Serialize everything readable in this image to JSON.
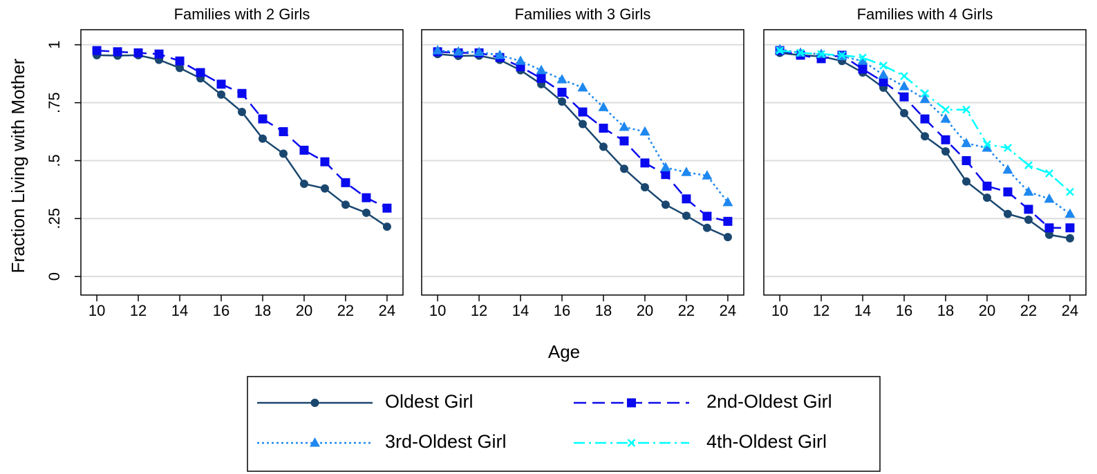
{
  "ylabel": "Fraction Living with Mother",
  "xlabel": "Age",
  "chart_data": [
    {
      "type": "line",
      "title": "Families with 2 Girls",
      "x": [
        10,
        11,
        12,
        13,
        14,
        15,
        16,
        17,
        18,
        19,
        20,
        21,
        22,
        23,
        24
      ],
      "xlim": [
        9.23,
        24.77
      ],
      "xticks": [
        10,
        12,
        14,
        16,
        18,
        20,
        22,
        24
      ],
      "ylim": [
        -0.08,
        1.065
      ],
      "yticks": [
        0,
        {
          "value": 0.25,
          "label": ".25"
        },
        {
          "value": 0.5,
          "label": ".5"
        },
        {
          "value": 0.75,
          "label": ".75"
        },
        1
      ],
      "grid": true,
      "series": [
        {
          "name": "Oldest Girl",
          "color": "#1a476f",
          "marker": "circle",
          "line_style": "solid",
          "values": [
            0.955,
            0.953,
            0.955,
            0.935,
            0.9,
            0.855,
            0.785,
            0.71,
            0.595,
            0.53,
            0.4,
            0.38,
            0.31,
            0.275,
            0.215
          ]
        },
        {
          "name": "2nd-Oldest Girl",
          "color": "#0a0aee",
          "marker": "square",
          "line_style": "dashed",
          "values": [
            0.975,
            0.97,
            0.965,
            0.96,
            0.93,
            0.88,
            0.83,
            0.79,
            0.68,
            0.625,
            0.545,
            0.495,
            0.405,
            0.34,
            0.295
          ]
        }
      ]
    },
    {
      "type": "line",
      "title": "Families with 3 Girls",
      "x": [
        10,
        11,
        12,
        13,
        14,
        15,
        16,
        17,
        18,
        19,
        20,
        21,
        22,
        23,
        24
      ],
      "xlim": [
        9.23,
        24.77
      ],
      "xticks": [
        10,
        12,
        14,
        16,
        18,
        20,
        22,
        24
      ],
      "ylim": [
        -0.08,
        1.065
      ],
      "grid": true,
      "series": [
        {
          "name": "Oldest Girl",
          "color": "#1a476f",
          "marker": "circle",
          "line_style": "solid",
          "values": [
            0.96,
            0.952,
            0.953,
            0.935,
            0.89,
            0.83,
            0.755,
            0.658,
            0.56,
            0.465,
            0.385,
            0.31,
            0.262,
            0.21,
            0.17
          ]
        },
        {
          "name": "2nd-Oldest Girl",
          "color": "#0a0aee",
          "marker": "square",
          "line_style": "dashed",
          "values": [
            0.97,
            0.965,
            0.965,
            0.945,
            0.905,
            0.855,
            0.795,
            0.71,
            0.64,
            0.585,
            0.49,
            0.44,
            0.335,
            0.26,
            0.238
          ]
        },
        {
          "name": "3rd-Oldest Girl",
          "color": "#1e88f0",
          "marker": "triangle",
          "line_style": "dotted",
          "values": [
            0.975,
            0.97,
            0.968,
            0.955,
            0.93,
            0.89,
            0.85,
            0.815,
            0.73,
            0.645,
            0.625,
            0.47,
            0.45,
            0.435,
            0.32
          ]
        }
      ]
    },
    {
      "type": "line",
      "title": "Families with 4 Girls",
      "x": [
        10,
        11,
        12,
        13,
        14,
        15,
        16,
        17,
        18,
        19,
        20,
        21,
        22,
        23,
        24
      ],
      "xlim": [
        9.23,
        24.77
      ],
      "xticks": [
        10,
        12,
        14,
        16,
        18,
        20,
        22,
        24
      ],
      "ylim": [
        -0.08,
        1.065
      ],
      "grid": true,
      "series": [
        {
          "name": "Oldest Girl",
          "color": "#1a476f",
          "marker": "circle",
          "line_style": "solid",
          "values": [
            0.965,
            0.955,
            0.95,
            0.93,
            0.88,
            0.815,
            0.705,
            0.605,
            0.54,
            0.41,
            0.34,
            0.27,
            0.245,
            0.18,
            0.165
          ]
        },
        {
          "name": "2nd-Oldest Girl",
          "color": "#0a0aee",
          "marker": "square",
          "line_style": "dashed",
          "values": [
            0.975,
            0.955,
            0.94,
            0.955,
            0.895,
            0.84,
            0.775,
            0.68,
            0.59,
            0.5,
            0.39,
            0.365,
            0.29,
            0.21,
            0.21
          ]
        },
        {
          "name": "3rd-Oldest Girl",
          "color": "#1e88f0",
          "marker": "triangle",
          "line_style": "dotted",
          "values": [
            0.98,
            0.965,
            0.96,
            0.95,
            0.93,
            0.87,
            0.82,
            0.765,
            0.68,
            0.575,
            0.555,
            0.46,
            0.365,
            0.335,
            0.27
          ]
        },
        {
          "name": "4th-Oldest Girl",
          "color": "#00ffff",
          "marker": "x",
          "line_style": "dashdot",
          "values": [
            0.975,
            0.965,
            0.96,
            0.955,
            0.945,
            0.91,
            0.865,
            0.79,
            0.72,
            0.72,
            0.57,
            0.555,
            0.48,
            0.445,
            0.365
          ]
        }
      ]
    }
  ]
}
